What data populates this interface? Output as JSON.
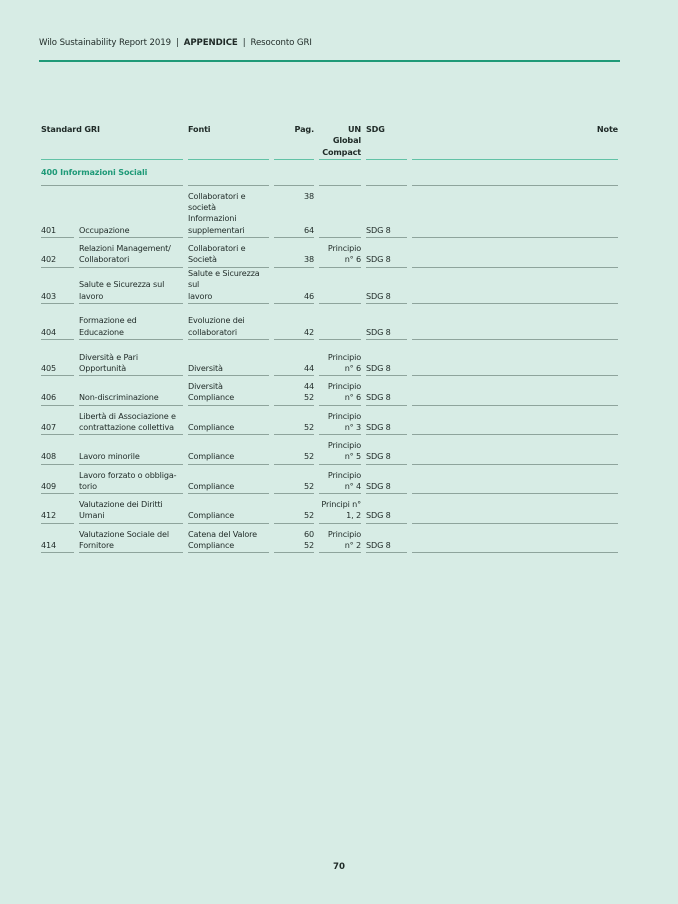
{
  "header": {
    "report": "Wilo Sustainability Report 2019",
    "sep": "|",
    "section": "APPENDICE",
    "subsection": "Resoconto GRI"
  },
  "table": {
    "columns": {
      "standard": "Standard GRI",
      "fonti": "Fonti",
      "pag": "Pag.",
      "ungc_1": "UN Global",
      "ungc_2": "Compact",
      "sdg": "SDG",
      "note": "Note"
    },
    "section_title": "400 Informazioni Sociali",
    "rows": [
      {
        "code": "401",
        "topic": "Occupazione",
        "fonti": [
          "Collaboratori e",
          "società",
          "Informazioni",
          "supplementari"
        ],
        "pag": [
          "38",
          "",
          "",
          "64"
        ],
        "ungc": [
          "",
          ""
        ],
        "sdg": "SDG 8"
      },
      {
        "code": "402",
        "topic": [
          "Relazioni Management/",
          "Collaboratori"
        ],
        "fonti": [
          "Collaboratori e",
          "Società"
        ],
        "pag": [
          "",
          "38"
        ],
        "ungc": [
          "Principio",
          "n° 6"
        ],
        "sdg": "SDG 8"
      },
      {
        "code": "403",
        "topic": [
          "",
          "Salute e Sicurezza sul lavoro"
        ],
        "fonti": [
          "Salute e Sicurezza sul",
          "lavoro"
        ],
        "pag": [
          "",
          "46"
        ],
        "ungc": [
          "",
          ""
        ],
        "sdg": "SDG 8"
      },
      {
        "code": "404",
        "topic": [
          "",
          "Formazione ed Educazione"
        ],
        "fonti": [
          "Evoluzione dei",
          "collaboratori"
        ],
        "pag": [
          "",
          "42"
        ],
        "ungc": [
          "",
          ""
        ],
        "sdg": "SDG 8"
      },
      {
        "code": "405",
        "topic": [
          "",
          "Diversità e Pari Opportunità"
        ],
        "fonti": [
          "",
          "Diversità"
        ],
        "pag": [
          "",
          "44"
        ],
        "ungc": [
          "Principio",
          "n° 6"
        ],
        "sdg": "SDG 8"
      },
      {
        "code": "406",
        "topic": [
          "",
          "Non-discriminazione"
        ],
        "fonti": [
          "Diversità",
          "Compliance"
        ],
        "pag": [
          "44",
          "52"
        ],
        "ungc": [
          "Principio",
          "n° 6"
        ],
        "sdg": "SDG 8"
      },
      {
        "code": "407",
        "topic": [
          "Libertà di Associazione e",
          "contrattazione collettiva"
        ],
        "fonti": [
          "",
          "Compliance"
        ],
        "pag": [
          "",
          "52"
        ],
        "ungc": [
          "Principio",
          "n° 3"
        ],
        "sdg": "SDG 8"
      },
      {
        "code": "408",
        "topic": [
          "",
          "Lavoro minorile"
        ],
        "fonti": [
          "",
          "Compliance"
        ],
        "pag": [
          "",
          "52"
        ],
        "ungc": [
          "Principio",
          "n° 5"
        ],
        "sdg": "SDG 8"
      },
      {
        "code": "409",
        "topic": [
          "Lavoro forzato o obbliga-",
          "torio"
        ],
        "fonti": [
          "",
          "Compliance"
        ],
        "pag": [
          "",
          "52"
        ],
        "ungc": [
          "Principio",
          "n° 4"
        ],
        "sdg": "SDG 8"
      },
      {
        "code": "412",
        "topic": [
          "Valutazione dei Diritti",
          "Umani"
        ],
        "fonti": [
          "",
          "Compliance"
        ],
        "pag": [
          "",
          "52"
        ],
        "ungc": [
          "Principi n°",
          "1, 2"
        ],
        "sdg": "SDG 8"
      },
      {
        "code": "414",
        "topic": [
          "Valutazione Sociale del",
          "Fornitore"
        ],
        "fonti": [
          "Catena del Valore",
          "Compliance"
        ],
        "pag": [
          "60",
          "52"
        ],
        "ungc": [
          "Principio",
          "n° 2"
        ],
        "sdg": "SDG 8"
      }
    ]
  },
  "page_number": "70",
  "colors": {
    "background": "#d7ece5",
    "accent": "#1f9a78"
  }
}
